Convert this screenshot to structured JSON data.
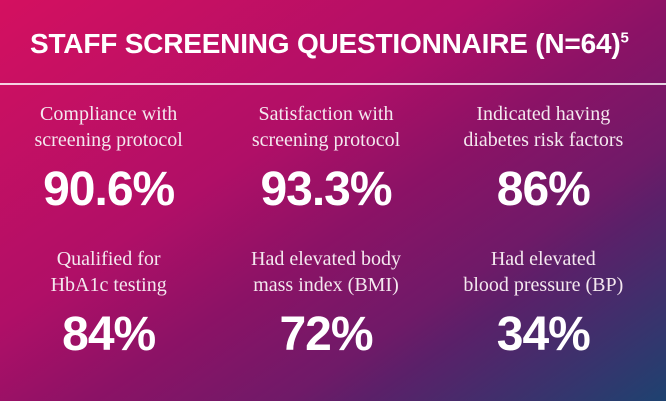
{
  "header": {
    "title": "STAFF SCREENING QUESTIONNAIRE (N=64)",
    "title_superscript": "5"
  },
  "stats": [
    {
      "label": "Compliance with\nscreening protocol",
      "value": "90.6%"
    },
    {
      "label": "Satisfaction with\nscreening protocol",
      "value": "93.3%"
    },
    {
      "label": "Indicated having\ndiabetes risk factors",
      "value": "86%"
    },
    {
      "label": "Qualified for\nHbA1c testing",
      "value": "84%"
    },
    {
      "label": "Had elevated body\nmass index (BMI)",
      "value": "72%"
    },
    {
      "label": "Had elevated\nblood pressure (BP)",
      "value": "34%"
    }
  ],
  "colors": {
    "gradient_top_left": "#d41060",
    "gradient_mid": "#8c1266",
    "gradient_bottom_right": "#1e4270",
    "title_text": "#ffffff",
    "label_text": "#f4e8ef",
    "value_text": "#ffffff",
    "divider": "#ffffff"
  },
  "chart_data": {
    "type": "table",
    "title": "STAFF SCREENING QUESTIONNAIRE (N=64)",
    "footnote_marker": "5",
    "unit": "%",
    "categories": [
      "Compliance with screening protocol",
      "Satisfaction with screening protocol",
      "Indicated having diabetes risk factors",
      "Qualified for HbA1c testing",
      "Had elevated body mass index (BMI)",
      "Had elevated blood pressure (BP)"
    ],
    "values": [
      90.6,
      93.3,
      86,
      84,
      72,
      34
    ]
  }
}
